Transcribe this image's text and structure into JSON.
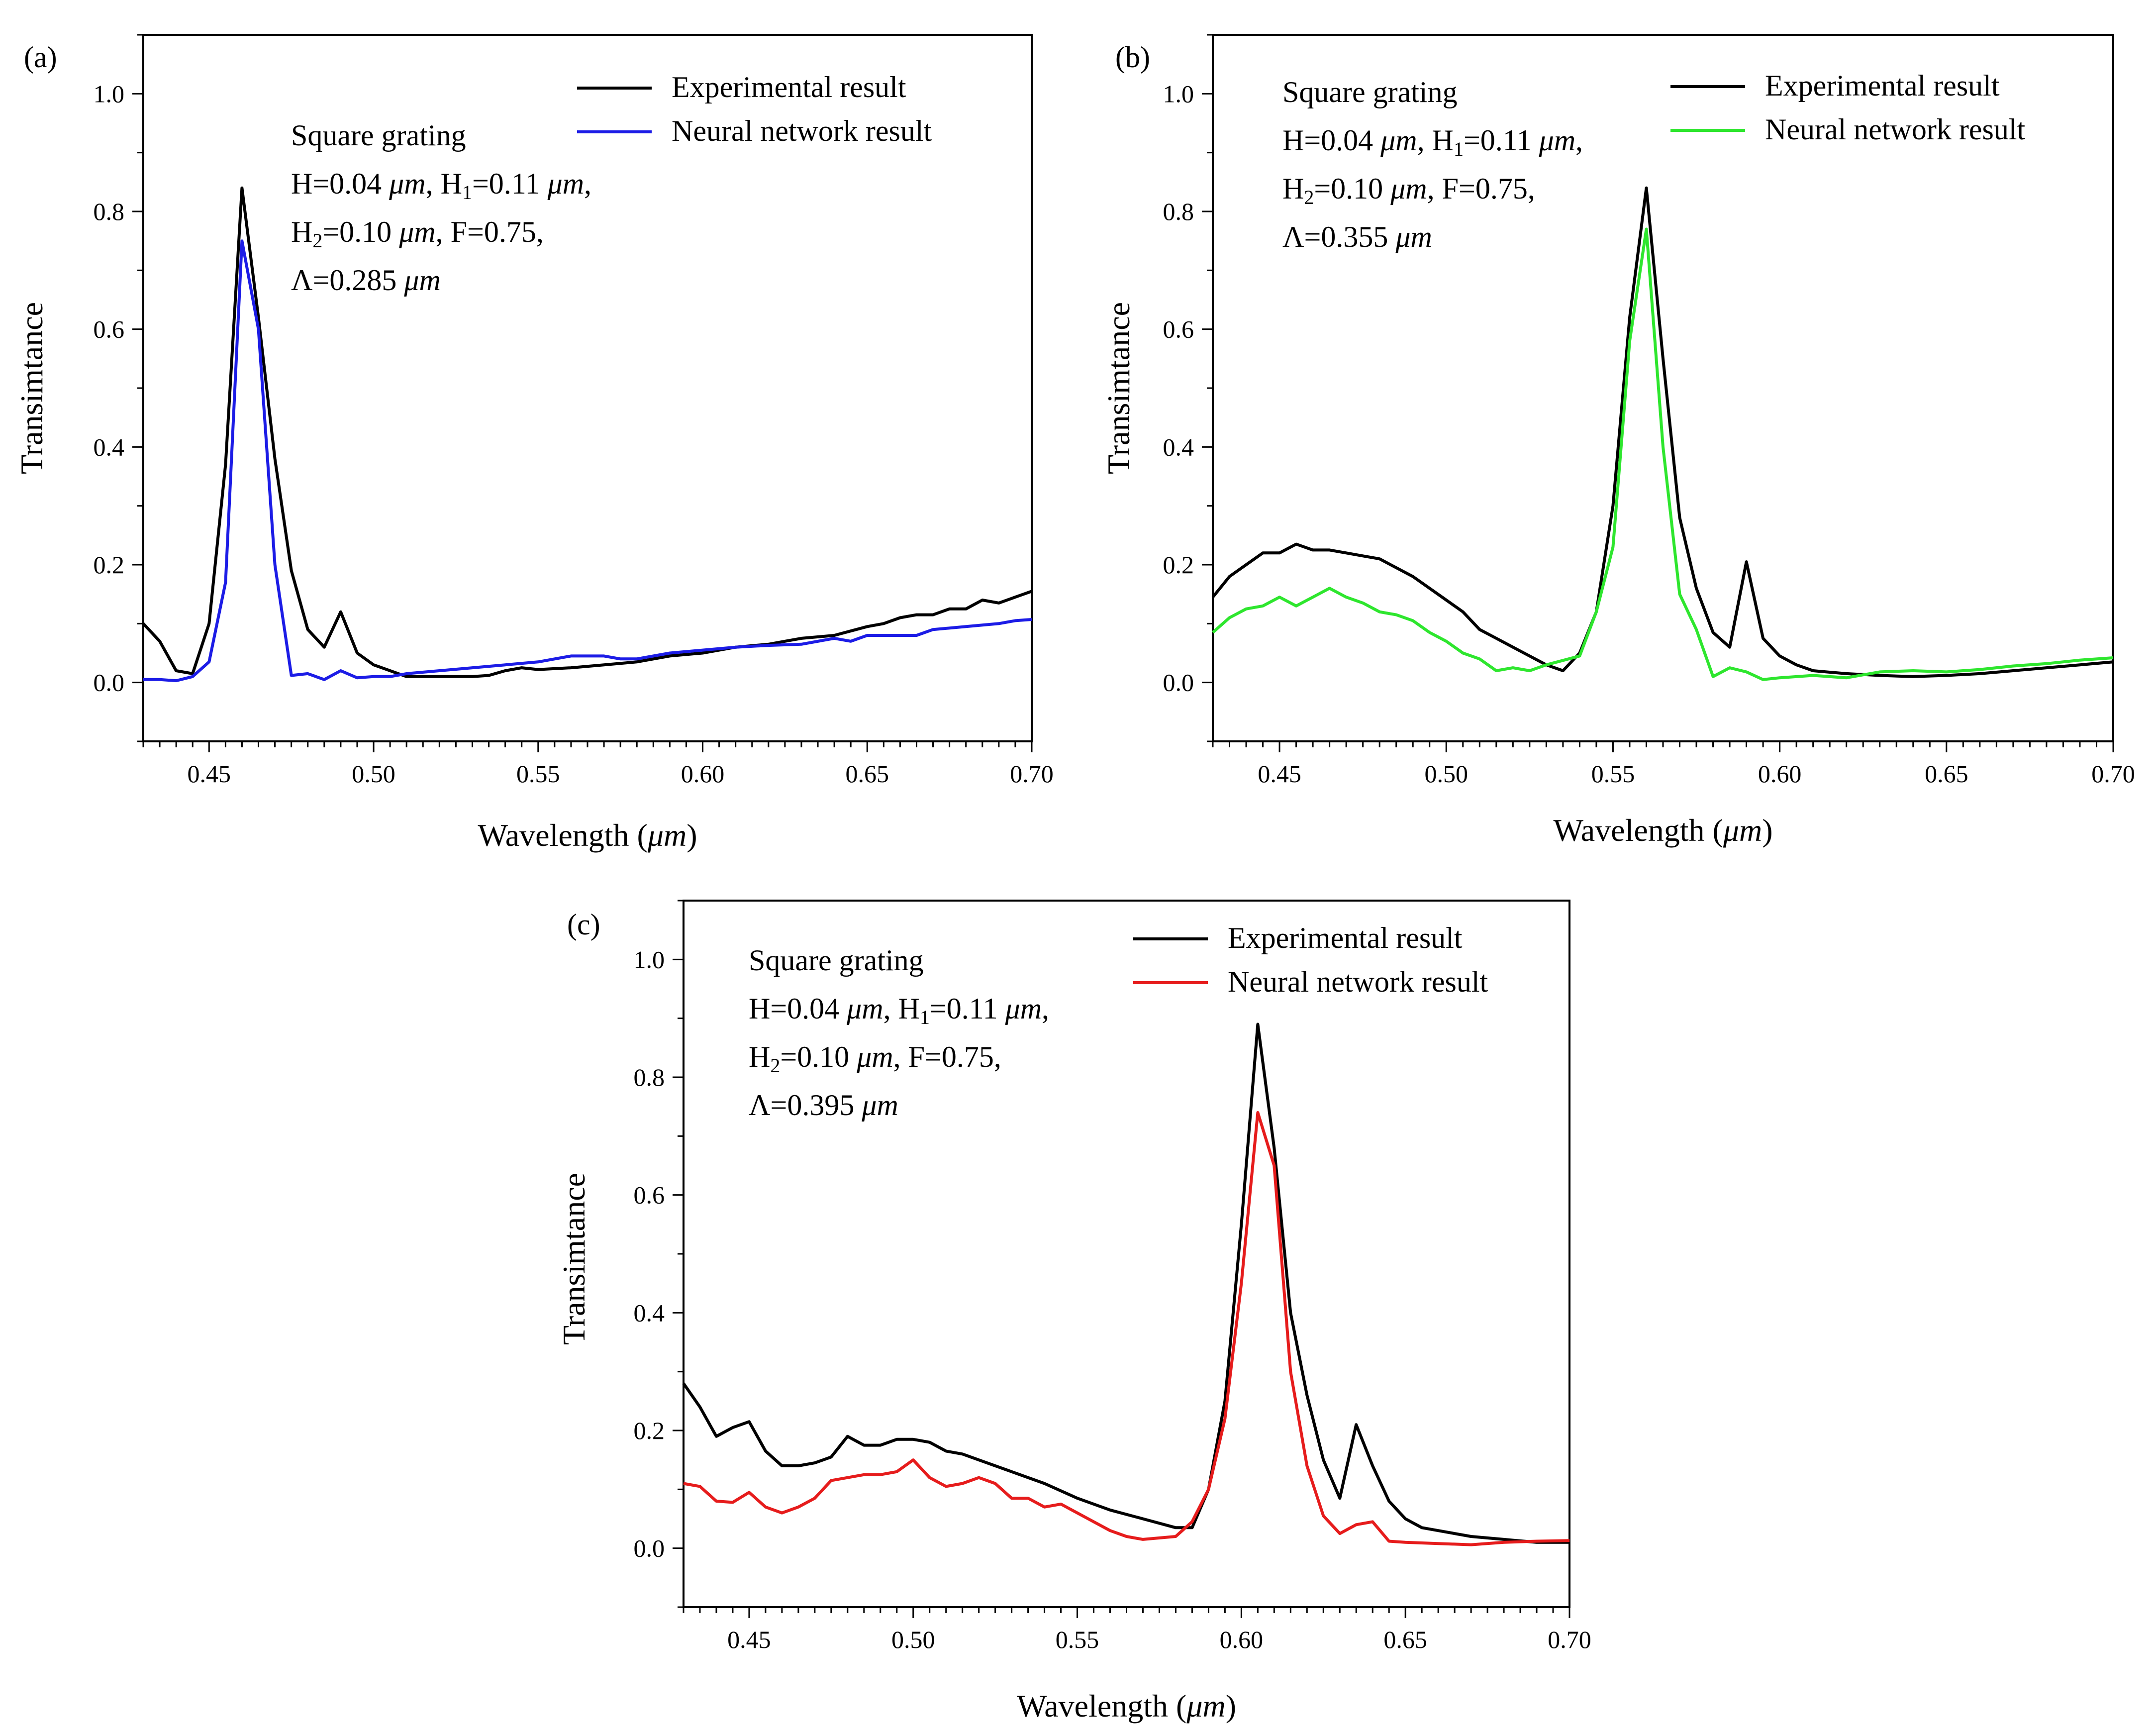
{
  "chart_data": [
    {
      "panel_label": "(a)",
      "type": "line",
      "xlabel": "Wavelength (",
      "xlabel_unit": "μm",
      "xlabel_close": ")",
      "ylabel": "Transimtance",
      "xlim": [
        0.43,
        0.7
      ],
      "ylim": [
        -0.1,
        1.1
      ],
      "x_ticks": [
        "0.45",
        "0.50",
        "0.55",
        "0.60",
        "0.65",
        "0.70"
      ],
      "y_ticks": [
        "0.0",
        "0.2",
        "0.4",
        "0.6",
        "0.8",
        "1.0"
      ],
      "legend_position": "top-right",
      "annotation": {
        "title": "Square grating",
        "line1": [
          "H=0.04 ",
          "μm",
          ", H",
          "1",
          "=0.11 ",
          "μm",
          ","
        ],
        "line2": [
          "H",
          "2",
          "=0.10 ",
          "μm",
          ", F=0.75,"
        ],
        "line3": [
          "Λ=0.285 ",
          "μm"
        ]
      },
      "series": [
        {
          "name": "Experimental result",
          "color": "#000000",
          "x": [
            0.43,
            0.435,
            0.44,
            0.445,
            0.45,
            0.455,
            0.46,
            0.465,
            0.47,
            0.475,
            0.48,
            0.485,
            0.49,
            0.495,
            0.5,
            0.51,
            0.52,
            0.53,
            0.535,
            0.54,
            0.545,
            0.55,
            0.56,
            0.57,
            0.58,
            0.59,
            0.6,
            0.61,
            0.62,
            0.625,
            0.63,
            0.64,
            0.65,
            0.655,
            0.66,
            0.665,
            0.67,
            0.675,
            0.68,
            0.685,
            0.69,
            0.695,
            0.7
          ],
          "y": [
            0.1,
            0.07,
            0.02,
            0.015,
            0.1,
            0.37,
            0.84,
            0.62,
            0.38,
            0.19,
            0.09,
            0.06,
            0.12,
            0.05,
            0.03,
            0.01,
            0.01,
            0.01,
            0.012,
            0.02,
            0.025,
            0.022,
            0.025,
            0.03,
            0.035,
            0.045,
            0.05,
            0.06,
            0.065,
            0.07,
            0.075,
            0.08,
            0.095,
            0.1,
            0.11,
            0.115,
            0.115,
            0.125,
            0.125,
            0.14,
            0.135,
            0.145,
            0.155
          ]
        },
        {
          "name": "Neural network result",
          "color": "#1c1ce6",
          "x": [
            0.43,
            0.435,
            0.44,
            0.445,
            0.45,
            0.455,
            0.46,
            0.465,
            0.47,
            0.475,
            0.48,
            0.485,
            0.49,
            0.495,
            0.5,
            0.505,
            0.51,
            0.52,
            0.53,
            0.54,
            0.55,
            0.56,
            0.57,
            0.575,
            0.58,
            0.59,
            0.6,
            0.61,
            0.62,
            0.63,
            0.64,
            0.645,
            0.65,
            0.66,
            0.665,
            0.67,
            0.68,
            0.69,
            0.695,
            0.7
          ],
          "y": [
            0.005,
            0.005,
            0.003,
            0.01,
            0.035,
            0.17,
            0.75,
            0.6,
            0.2,
            0.012,
            0.015,
            0.005,
            0.02,
            0.008,
            0.01,
            0.01,
            0.015,
            0.02,
            0.025,
            0.03,
            0.035,
            0.045,
            0.045,
            0.04,
            0.04,
            0.05,
            0.055,
            0.06,
            0.063,
            0.065,
            0.075,
            0.07,
            0.08,
            0.08,
            0.08,
            0.09,
            0.095,
            0.1,
            0.105,
            0.107
          ]
        }
      ]
    },
    {
      "panel_label": "(b)",
      "type": "line",
      "xlabel": "Wavelength (",
      "xlabel_unit": "μm",
      "xlabel_close": ")",
      "ylabel": "Transimtance",
      "xlim": [
        0.43,
        0.7
      ],
      "ylim": [
        -0.1,
        1.1
      ],
      "x_ticks": [
        "0.45",
        "0.50",
        "0.55",
        "0.60",
        "0.65",
        "0.70"
      ],
      "y_ticks": [
        "0.0",
        "0.2",
        "0.4",
        "0.6",
        "0.8",
        "1.0"
      ],
      "legend_position": "top-right",
      "annotation": {
        "title": "Square grating",
        "line1": [
          "H=0.04 ",
          "μm",
          ", H",
          "1",
          "=0.11 ",
          "μm",
          ","
        ],
        "line2": [
          "H",
          "2",
          "=0.10 ",
          "μm",
          ", F=0.75,"
        ],
        "line3": [
          "Λ=0.355 ",
          "μm"
        ]
      },
      "series": [
        {
          "name": "Experimental result",
          "color": "#000000",
          "x": [
            0.43,
            0.435,
            0.44,
            0.445,
            0.45,
            0.455,
            0.46,
            0.465,
            0.47,
            0.475,
            0.48,
            0.49,
            0.5,
            0.505,
            0.51,
            0.515,
            0.52,
            0.53,
            0.535,
            0.54,
            0.545,
            0.55,
            0.555,
            0.56,
            0.565,
            0.57,
            0.575,
            0.58,
            0.585,
            0.59,
            0.595,
            0.6,
            0.605,
            0.61,
            0.62,
            0.63,
            0.64,
            0.65,
            0.66,
            0.67,
            0.68,
            0.69,
            0.7
          ],
          "y": [
            0.145,
            0.18,
            0.2,
            0.22,
            0.22,
            0.235,
            0.225,
            0.225,
            0.22,
            0.215,
            0.21,
            0.18,
            0.14,
            0.12,
            0.09,
            0.075,
            0.06,
            0.03,
            0.02,
            0.05,
            0.12,
            0.3,
            0.62,
            0.84,
            0.55,
            0.28,
            0.16,
            0.085,
            0.06,
            0.205,
            0.075,
            0.045,
            0.03,
            0.02,
            0.015,
            0.012,
            0.01,
            0.012,
            0.015,
            0.02,
            0.025,
            0.03,
            0.035
          ]
        },
        {
          "name": "Neural network result",
          "color": "#2ee62e",
          "x": [
            0.43,
            0.435,
            0.44,
            0.445,
            0.45,
            0.455,
            0.46,
            0.465,
            0.47,
            0.475,
            0.48,
            0.485,
            0.49,
            0.495,
            0.5,
            0.505,
            0.51,
            0.515,
            0.52,
            0.525,
            0.53,
            0.54,
            0.545,
            0.55,
            0.555,
            0.56,
            0.565,
            0.57,
            0.575,
            0.58,
            0.585,
            0.59,
            0.595,
            0.6,
            0.61,
            0.62,
            0.63,
            0.64,
            0.65,
            0.66,
            0.67,
            0.68,
            0.69,
            0.7
          ],
          "y": [
            0.085,
            0.11,
            0.125,
            0.13,
            0.145,
            0.13,
            0.145,
            0.16,
            0.145,
            0.135,
            0.12,
            0.115,
            0.105,
            0.085,
            0.07,
            0.05,
            0.04,
            0.02,
            0.025,
            0.02,
            0.03,
            0.045,
            0.12,
            0.23,
            0.58,
            0.77,
            0.4,
            0.15,
            0.09,
            0.01,
            0.025,
            0.018,
            0.005,
            0.008,
            0.012,
            0.008,
            0.018,
            0.02,
            0.018,
            0.022,
            0.028,
            0.032,
            0.038,
            0.042
          ]
        }
      ]
    },
    {
      "panel_label": "(c)",
      "type": "line",
      "xlabel": "Wavelength (",
      "xlabel_unit": "μm",
      "xlabel_close": ")",
      "ylabel": "Transimtance",
      "xlim": [
        0.43,
        0.7
      ],
      "ylim": [
        -0.1,
        1.1
      ],
      "x_ticks": [
        "0.45",
        "0.50",
        "0.55",
        "0.60",
        "0.65",
        "0.70"
      ],
      "y_ticks": [
        "0.0",
        "0.2",
        "0.4",
        "0.6",
        "0.8",
        "1.0"
      ],
      "legend_position": "top-right",
      "annotation": {
        "title": "Square grating",
        "line1": [
          "H=0.04 ",
          "μm",
          ", H",
          "1",
          "=0.11 ",
          "μm",
          ","
        ],
        "line2": [
          "H",
          "2",
          "=0.10 ",
          "μm",
          ", F=0.75,"
        ],
        "line3": [
          "Λ=0.395 ",
          "μm"
        ]
      },
      "series": [
        {
          "name": "Experimental result",
          "color": "#000000",
          "x": [
            0.43,
            0.435,
            0.44,
            0.445,
            0.45,
            0.455,
            0.46,
            0.465,
            0.47,
            0.475,
            0.48,
            0.485,
            0.49,
            0.495,
            0.5,
            0.505,
            0.51,
            0.515,
            0.52,
            0.53,
            0.54,
            0.55,
            0.56,
            0.57,
            0.58,
            0.585,
            0.59,
            0.595,
            0.6,
            0.605,
            0.61,
            0.615,
            0.62,
            0.625,
            0.63,
            0.635,
            0.64,
            0.645,
            0.65,
            0.655,
            0.66,
            0.67,
            0.68,
            0.69,
            0.7
          ],
          "y": [
            0.28,
            0.24,
            0.19,
            0.205,
            0.215,
            0.165,
            0.14,
            0.14,
            0.145,
            0.155,
            0.19,
            0.175,
            0.175,
            0.185,
            0.185,
            0.18,
            0.165,
            0.16,
            0.15,
            0.13,
            0.11,
            0.085,
            0.065,
            0.05,
            0.035,
            0.035,
            0.1,
            0.25,
            0.55,
            0.89,
            0.68,
            0.4,
            0.26,
            0.15,
            0.085,
            0.21,
            0.14,
            0.08,
            0.05,
            0.035,
            0.03,
            0.02,
            0.015,
            0.01,
            0.01
          ]
        },
        {
          "name": "Neural network result",
          "color": "#e61c1c",
          "x": [
            0.43,
            0.435,
            0.44,
            0.445,
            0.45,
            0.455,
            0.46,
            0.465,
            0.47,
            0.475,
            0.48,
            0.485,
            0.49,
            0.495,
            0.5,
            0.505,
            0.51,
            0.515,
            0.52,
            0.525,
            0.53,
            0.535,
            0.54,
            0.545,
            0.55,
            0.56,
            0.565,
            0.57,
            0.58,
            0.585,
            0.59,
            0.595,
            0.6,
            0.605,
            0.61,
            0.615,
            0.62,
            0.625,
            0.63,
            0.635,
            0.64,
            0.645,
            0.65,
            0.66,
            0.67,
            0.68,
            0.69,
            0.7
          ],
          "y": [
            0.11,
            0.105,
            0.08,
            0.078,
            0.095,
            0.07,
            0.06,
            0.07,
            0.085,
            0.115,
            0.12,
            0.125,
            0.125,
            0.13,
            0.15,
            0.12,
            0.105,
            0.11,
            0.12,
            0.11,
            0.085,
            0.085,
            0.07,
            0.075,
            0.06,
            0.03,
            0.02,
            0.015,
            0.02,
            0.045,
            0.1,
            0.22,
            0.45,
            0.74,
            0.65,
            0.3,
            0.14,
            0.055,
            0.025,
            0.04,
            0.045,
            0.012,
            0.01,
            0.008,
            0.006,
            0.01,
            0.012,
            0.013
          ]
        }
      ]
    }
  ]
}
